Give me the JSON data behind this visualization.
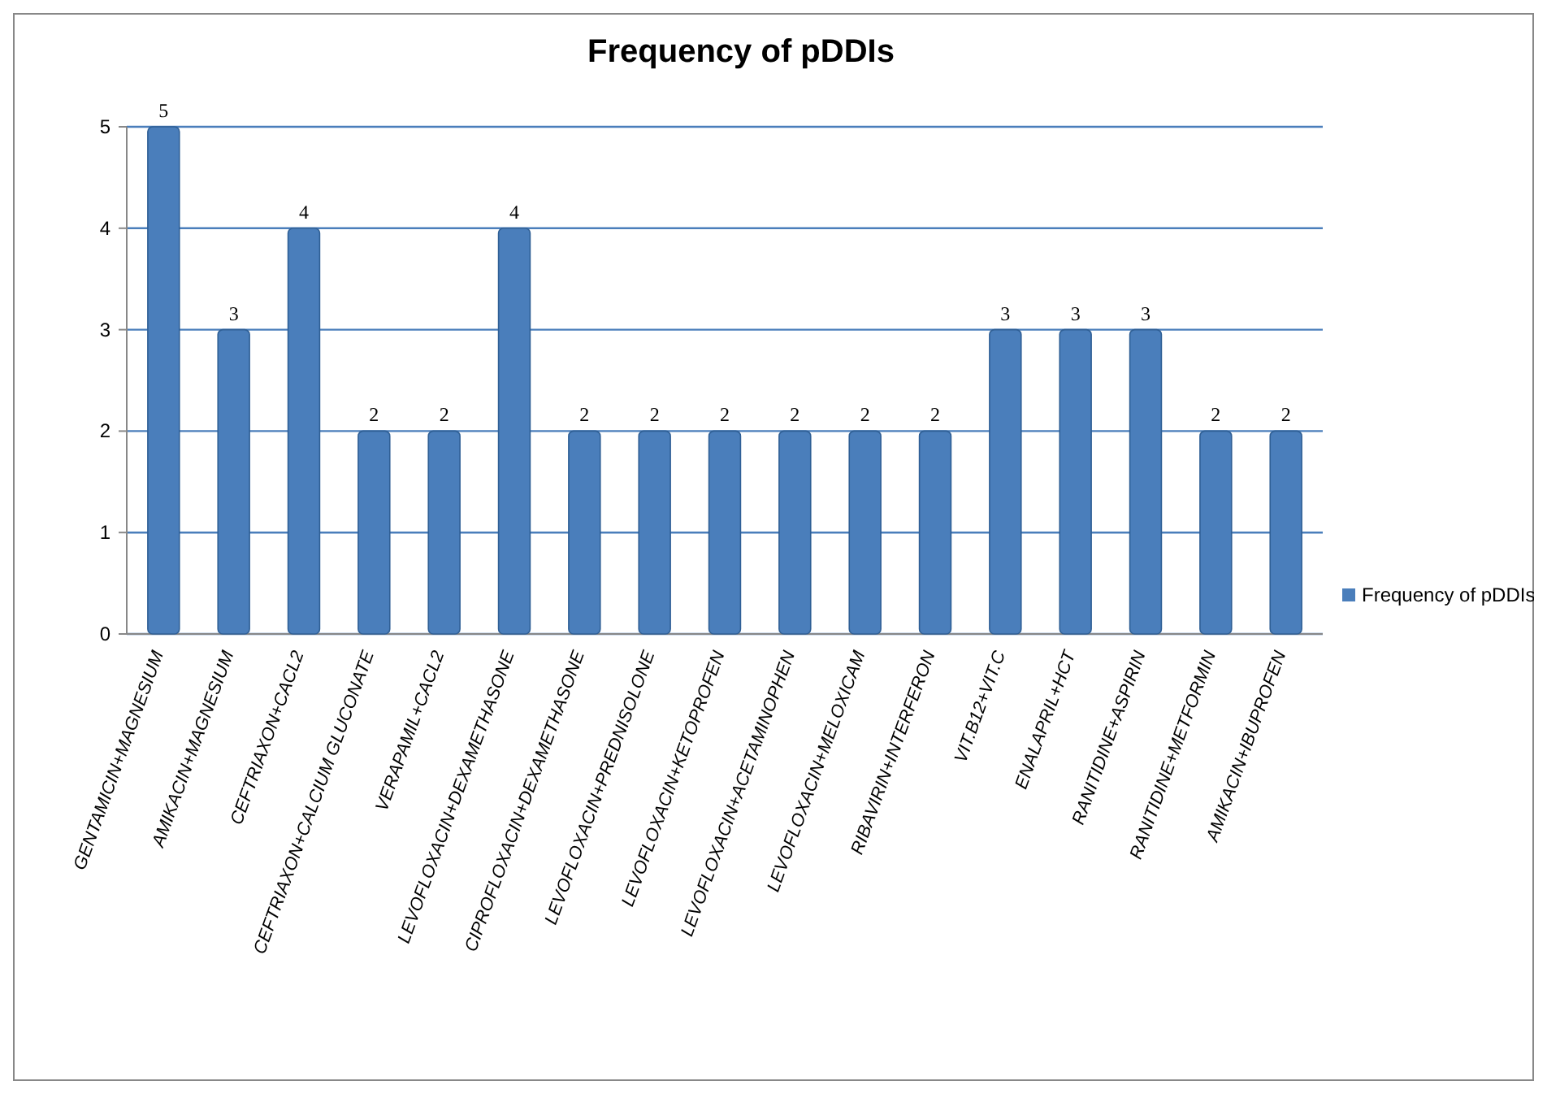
{
  "chart_data": {
    "type": "bar",
    "title": "Frequency of pDDIs",
    "categories": [
      "GENTAMICIN+MAGNESIUM",
      "AMIKACIN+MAGNESIUM",
      "CEFTRIAXON+CACL2",
      "CEFTRIAXON+CALCIUM GLUCONATE",
      "VERAPAMIL+CACL2",
      "LEVOFLOXACIN+DEXAMETHASONE",
      "CIPROFLOXACIN+DEXAMETHASONE",
      "LEVOFLOXACIN+PREDNISOLONE",
      "LEVOFLOXACIN+KETOPROFEN",
      "LEVOFLOXACIN+ACETAMINOPHEN",
      "LEVOFLOXACIN+MELOXICAM",
      "RIBAVIRIN+INTERFERON",
      "VIT.B12+VIT.C",
      "ENALAPRIL+HCT",
      "RANITIDINE+ASPIRIN",
      "RANITIDINE+METFORMIN",
      "AMIKACIN+IBUPROFEN"
    ],
    "series": [
      {
        "name": "Frequency of pDDIs",
        "color": "#4a7ebb",
        "values": [
          5,
          3,
          4,
          2,
          2,
          4,
          2,
          2,
          2,
          2,
          2,
          2,
          3,
          3,
          3,
          2,
          2
        ]
      }
    ],
    "ylim": [
      0,
      5
    ],
    "yticks": [
      0,
      1,
      2,
      3,
      4,
      5
    ],
    "grid": "y",
    "legend": "right",
    "data_labels": true
  }
}
